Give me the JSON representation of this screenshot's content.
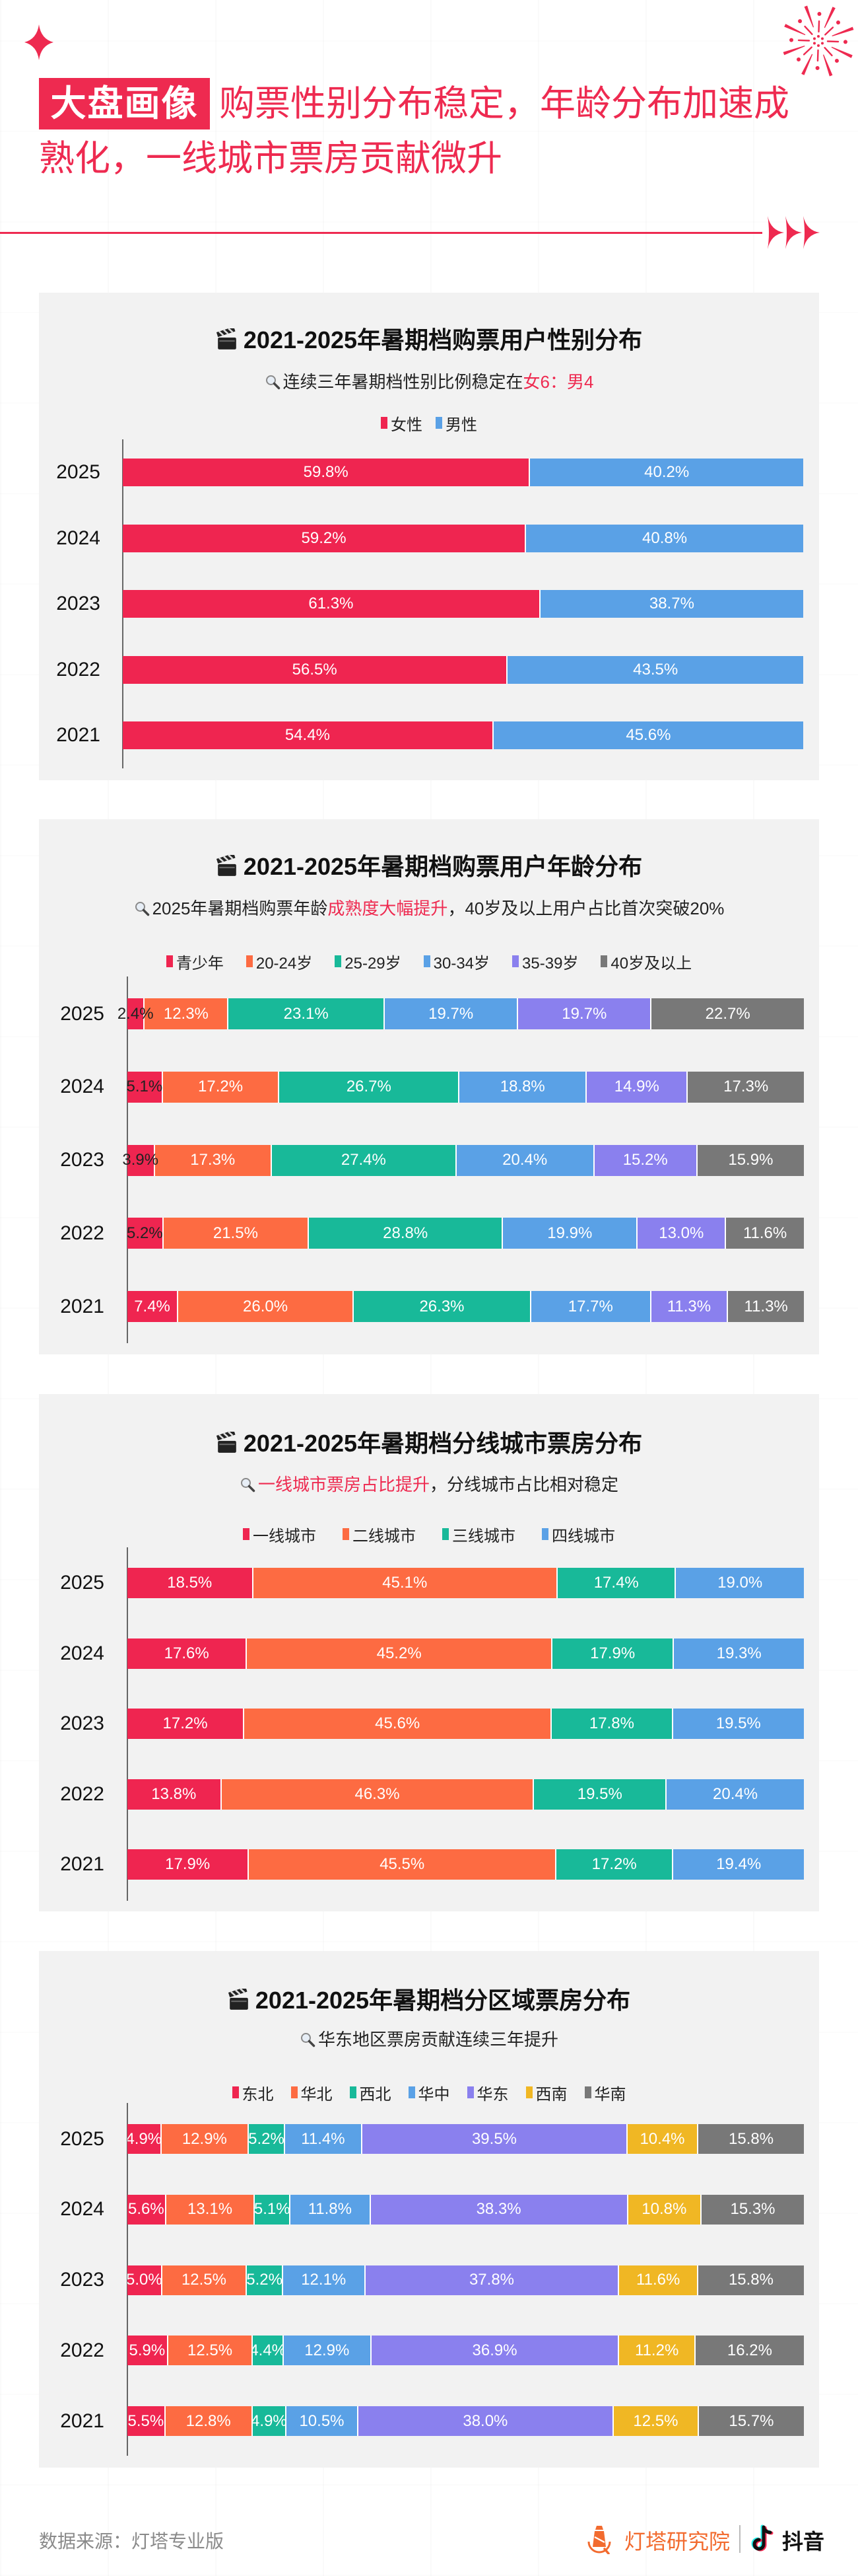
{
  "theme": {
    "accent": "#ee2a50",
    "card_background": "#f2f2f2",
    "text": "#111111"
  },
  "icons": {
    "header_left": "sparkle-icon",
    "header_right": "firework-icon",
    "divider_end": "triple-arrow-icon",
    "card_title": "clapperboard-icon",
    "card_subtitle": "magnifier-icon",
    "brand": "lighthouse-logo-icon",
    "partner": "douyin-logo-icon"
  },
  "header": {
    "tag": "大盘画像",
    "headline_lines": [
      "购票性别分布稳定，年龄分布加速成",
      "熟化，一线城市票房贡献微升"
    ]
  },
  "chart_data": [
    {
      "type": "bar",
      "orientation": "horizontal",
      "stacked": true,
      "title": "2021-2025年暑期档购票用户性别分布",
      "subtitle_parts": [
        {
          "text": "连续三年暑期档性别比例稳定在",
          "highlight": false
        },
        {
          "text": "女6：男4",
          "highlight": true
        }
      ],
      "xlabel": "",
      "ylabel": "",
      "xlim": [
        0,
        100
      ],
      "unit": "%",
      "legend": "top-center",
      "grid": false,
      "categories": [
        "2025",
        "2024",
        "2023",
        "2022",
        "2021"
      ],
      "series": [
        {
          "name": "女性",
          "color": "#ef2550",
          "values": [
            59.8,
            59.2,
            61.3,
            56.5,
            54.4
          ],
          "labels": [
            "59.8%",
            "59.2%",
            "61.3%",
            "56.5%",
            "54.4%"
          ]
        },
        {
          "name": "男性",
          "color": "#5aa1e6",
          "values": [
            40.2,
            40.8,
            38.7,
            43.5,
            45.6
          ],
          "labels": [
            "40.2%",
            "40.8%",
            "38.7%",
            "43.5%",
            "45.6%"
          ]
        }
      ]
    },
    {
      "type": "bar",
      "orientation": "horizontal",
      "stacked": true,
      "title": "2021-2025年暑期档购票用户年龄分布",
      "subtitle_parts": [
        {
          "text": "2025年暑期档购票年龄",
          "highlight": false
        },
        {
          "text": "成熟度大幅提升",
          "highlight": true
        },
        {
          "text": "，40岁及以上用户占比首次突破20%",
          "highlight": false
        }
      ],
      "xlabel": "",
      "ylabel": "",
      "xlim": [
        0,
        100
      ],
      "unit": "%",
      "legend": "top-center",
      "grid": false,
      "categories": [
        "2025",
        "2024",
        "2023",
        "2022",
        "2021"
      ],
      "series": [
        {
          "name": "青少年",
          "color": "#ef2550",
          "values": [
            2.4,
            5.1,
            3.9,
            5.2,
            7.4
          ],
          "labels": [
            "2.4%",
            "5.1%",
            "3.9%",
            "5.2%",
            "7.4%"
          ]
        },
        {
          "name": "20-24岁",
          "color": "#fd6b42",
          "values": [
            12.3,
            17.2,
            17.3,
            21.5,
            26.0
          ],
          "labels": [
            "12.3%",
            "17.2%",
            "17.3%",
            "21.5%",
            "26.0%"
          ]
        },
        {
          "name": "25-29岁",
          "color": "#18b999",
          "values": [
            23.1,
            26.7,
            27.4,
            28.8,
            26.3
          ],
          "labels": [
            "23.1%",
            "26.7%",
            "27.4%",
            "28.8%",
            "26.3%"
          ]
        },
        {
          "name": "30-34岁",
          "color": "#5aa1e6",
          "values": [
            19.7,
            18.8,
            20.4,
            19.9,
            17.7
          ],
          "labels": [
            "19.7%",
            "18.8%",
            "20.4%",
            "19.9%",
            "17.7%"
          ]
        },
        {
          "name": "35-39岁",
          "color": "#8a80ee",
          "values": [
            19.7,
            14.9,
            15.2,
            13.0,
            11.3
          ],
          "labels": [
            "19.7%",
            "14.9%",
            "15.2%",
            "13.0%",
            "11.3%"
          ]
        },
        {
          "name": "40岁及以上",
          "color": "#787878",
          "values": [
            22.7,
            17.3,
            15.9,
            11.6,
            11.3
          ],
          "labels": [
            "22.7%",
            "17.3%",
            "15.9%",
            "11.6%",
            "11.3%"
          ]
        }
      ]
    },
    {
      "type": "bar",
      "orientation": "horizontal",
      "stacked": true,
      "title": "2021-2025年暑期档分线城市票房分布",
      "subtitle_parts": [
        {
          "text": "一线城市票房占比提升",
          "highlight": true
        },
        {
          "text": "，分线城市占比相对稳定",
          "highlight": false
        }
      ],
      "xlabel": "",
      "ylabel": "",
      "xlim": [
        0,
        100
      ],
      "unit": "%",
      "legend": "top-center",
      "grid": false,
      "categories": [
        "2025",
        "2024",
        "2023",
        "2022",
        "2021"
      ],
      "series": [
        {
          "name": "一线城市",
          "color": "#ef2550",
          "values": [
            18.5,
            17.6,
            17.2,
            13.8,
            17.9
          ],
          "labels": [
            "18.5%",
            "17.6%",
            "17.2%",
            "13.8%",
            "17.9%"
          ]
        },
        {
          "name": "二线城市",
          "color": "#fd6b42",
          "values": [
            45.1,
            45.2,
            45.6,
            46.3,
            45.5
          ],
          "labels": [
            "45.1%",
            "45.2%",
            "45.6%",
            "46.3%",
            "45.5%"
          ]
        },
        {
          "name": "三线城市",
          "color": "#18b999",
          "values": [
            17.4,
            17.9,
            17.8,
            19.5,
            17.2
          ],
          "labels": [
            "17.4%",
            "17.9%",
            "17.8%",
            "19.5%",
            "17.2%"
          ]
        },
        {
          "name": "四线城市",
          "color": "#5aa1e6",
          "values": [
            19.0,
            19.3,
            19.5,
            20.4,
            19.4
          ],
          "labels": [
            "19.0%",
            "19.3%",
            "19.5%",
            "20.4%",
            "19.4%"
          ]
        }
      ]
    },
    {
      "type": "bar",
      "orientation": "horizontal",
      "stacked": true,
      "title": "2021-2025年暑期档分区域票房分布",
      "subtitle_parts": [
        {
          "text": "华东地区票房贡献连续三年提升",
          "highlight": false
        }
      ],
      "xlabel": "",
      "ylabel": "",
      "xlim": [
        0,
        100
      ],
      "unit": "%",
      "legend": "top-center",
      "grid": false,
      "categories": [
        "2025",
        "2024",
        "2023",
        "2022",
        "2021"
      ],
      "series": [
        {
          "name": "东北",
          "color": "#ef2550",
          "values": [
            4.9,
            5.6,
            5.0,
            5.9,
            5.5
          ],
          "labels": [
            "4.9%",
            "5.6%",
            "5.0%",
            "5.9%",
            "5.5%"
          ]
        },
        {
          "name": "华北",
          "color": "#fd6b42",
          "values": [
            12.9,
            13.1,
            12.5,
            12.5,
            12.8
          ],
          "labels": [
            "12.9%",
            "13.1%",
            "12.5%",
            "12.5%",
            "12.8%"
          ]
        },
        {
          "name": "西北",
          "color": "#18b999",
          "values": [
            5.2,
            5.1,
            5.2,
            4.4,
            4.9
          ],
          "labels": [
            "5.2%",
            "5.1%",
            "5.2%",
            "4.4%",
            "4.9%"
          ]
        },
        {
          "name": "华中",
          "color": "#5aa1e6",
          "values": [
            11.4,
            11.8,
            12.1,
            12.9,
            10.5
          ],
          "labels": [
            "11.4%",
            "11.8%",
            "12.1%",
            "12.9%",
            "10.5%"
          ]
        },
        {
          "name": "华东",
          "color": "#8a80ee",
          "values": [
            39.5,
            38.3,
            37.8,
            36.9,
            38.0
          ],
          "labels": [
            "39.5%",
            "38.3%",
            "37.8%",
            "36.9%",
            "38.0%"
          ]
        },
        {
          "name": "西南",
          "color": "#f0b724",
          "values": [
            10.4,
            10.8,
            11.6,
            11.2,
            12.5
          ],
          "labels": [
            "10.4%",
            "10.8%",
            "11.6%",
            "11.2%",
            "12.5%"
          ]
        },
        {
          "name": "华南",
          "color": "#787878",
          "values": [
            15.8,
            15.3,
            15.8,
            16.2,
            15.7
          ],
          "labels": [
            "15.8%",
            "15.3%",
            "15.8%",
            "16.2%",
            "15.7%"
          ]
        }
      ]
    }
  ],
  "footer": {
    "source": "数据来源：灯塔专业版",
    "brand": "灯塔研究院",
    "partner": "抖音"
  }
}
